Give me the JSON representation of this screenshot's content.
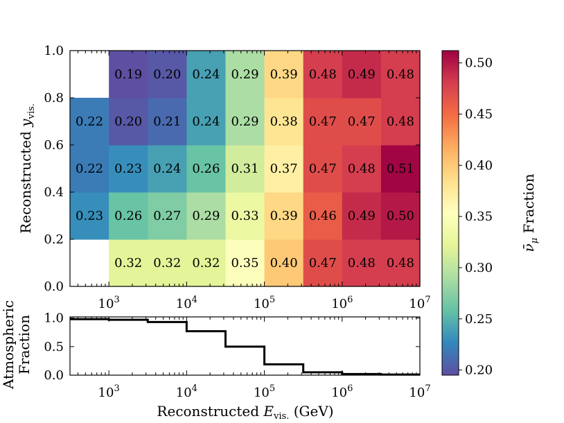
{
  "chart_data": [
    {
      "type": "heatmap",
      "title": "",
      "xlabel": "",
      "ylabel": "Reconstructed y_vis.",
      "xscale": "log",
      "x_bin_edges_GeV": [
        316,
        1000,
        3162,
        10000,
        31623,
        100000,
        316228,
        1000000,
        3162278,
        10000000
      ],
      "y_bin_edges": [
        0.0,
        0.2,
        0.4,
        0.6,
        0.8,
        1.0
      ],
      "xlim": [
        316,
        10000000
      ],
      "ylim": [
        0.0,
        1.0
      ],
      "x_ticks": [
        {
          "value": 1000,
          "base": "10",
          "exp": "3"
        },
        {
          "value": 10000,
          "base": "10",
          "exp": "4"
        },
        {
          "value": 100000,
          "base": "10",
          "exp": "5"
        },
        {
          "value": 1000000,
          "base": "10",
          "exp": "6"
        },
        {
          "value": 10000000,
          "base": "10",
          "exp": "7"
        }
      ],
      "y_ticks": [
        "0.0",
        "0.2",
        "0.4",
        "0.6",
        "0.8",
        "1.0"
      ],
      "values_bottom_to_top": [
        [
          null,
          0.32,
          0.32,
          0.32,
          0.35,
          0.4,
          0.47,
          0.48,
          0.48
        ],
        [
          0.23,
          0.26,
          0.27,
          0.29,
          0.33,
          0.39,
          0.46,
          0.49,
          0.5
        ],
        [
          0.22,
          0.23,
          0.24,
          0.26,
          0.31,
          0.37,
          0.47,
          0.48,
          0.51
        ],
        [
          0.22,
          0.2,
          0.21,
          0.24,
          0.29,
          0.38,
          0.47,
          0.47,
          0.48
        ],
        [
          null,
          0.19,
          0.2,
          0.24,
          0.29,
          0.39,
          0.48,
          0.49,
          0.48
        ]
      ],
      "labels_bottom_to_top": [
        [
          "",
          "0.32",
          "0.32",
          "0.32",
          "0.35",
          "0.40",
          "0.47",
          "0.48",
          "0.48"
        ],
        [
          "0.23",
          "0.26",
          "0.27",
          "0.29",
          "0.33",
          "0.39",
          "0.46",
          "0.49",
          "0.50"
        ],
        [
          "0.22",
          "0.23",
          "0.24",
          "0.26",
          "0.31",
          "0.37",
          "0.47",
          "0.48",
          "0.51"
        ],
        [
          "0.22",
          "0.20",
          "0.21",
          "0.24",
          "0.29",
          "0.38",
          "0.47",
          "0.47",
          "0.48"
        ],
        [
          "",
          "0.19",
          "0.20",
          "0.24",
          "0.29",
          "0.39",
          "0.48",
          "0.49",
          "0.48"
        ]
      ],
      "colormap": "Spectral_r",
      "colorbar": {
        "label": "ν̄_μ Fraction",
        "range": [
          0.195,
          0.512
        ],
        "ticks": [
          "0.20",
          "0.25",
          "0.30",
          "0.35",
          "0.40",
          "0.45",
          "0.50"
        ],
        "tick_values": [
          0.2,
          0.25,
          0.3,
          0.35,
          0.4,
          0.45,
          0.5
        ],
        "stops": [
          "#5e4fa2",
          "#3288bd",
          "#66c2a5",
          "#abdda4",
          "#e6f598",
          "#ffffbf",
          "#fee08b",
          "#fdae61",
          "#f46d43",
          "#d53e4f",
          "#9e0142"
        ]
      }
    },
    {
      "type": "step",
      "xlabel": "Reconstructed E_vis. (GeV)",
      "ylabel": "Atmospheric Fraction",
      "xscale": "log",
      "x_bin_edges_GeV": [
        316,
        1000,
        3162,
        10000,
        31623,
        100000,
        316228,
        1000000,
        3162278,
        10000000
      ],
      "values": [
        0.98,
        0.97,
        0.93,
        0.77,
        0.5,
        0.19,
        0.05,
        0.02,
        0.01
      ],
      "ylim": [
        0.0,
        1.02
      ],
      "y_ticks": [
        "0.0",
        "0.5",
        "1.0"
      ],
      "y_tick_values": [
        0.0,
        0.5,
        1.0
      ],
      "line_color": "#000000"
    }
  ],
  "text": {
    "heat_ylabel_main": "Reconstructed ",
    "heat_ylabel_var": "y",
    "heat_ylabel_sub": "vis.",
    "bottom_ylabel_line1": "Atmospheric",
    "bottom_ylabel_line2": "Fraction",
    "bottom_xlabel_main": "Reconstructed ",
    "bottom_xlabel_var": "E",
    "bottom_xlabel_sub": "vis.",
    "bottom_xlabel_unit": " (GeV)",
    "colorbar_label_symbol": "ν̄",
    "colorbar_label_sub": "μ",
    "colorbar_label_word": " Fraction"
  }
}
